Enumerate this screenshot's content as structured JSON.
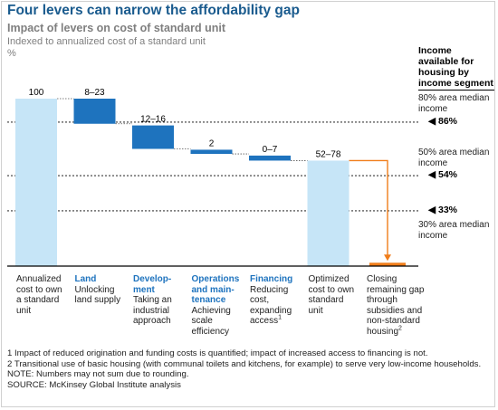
{
  "header": {
    "title": "Four levers can narrow the affordability gap",
    "subtitle": "Impact of levers on cost of standard unit",
    "unit_line1": "Indexed to annualized cost of a standard unit",
    "unit_line2": "%"
  },
  "income_panel": {
    "header": "Income available for housing by income segment",
    "segments": [
      "80% area median income",
      "50% area median income",
      "30% area median income"
    ],
    "references": [
      {
        "label": "86%",
        "value": 86
      },
      {
        "label": "54%",
        "value": 54
      },
      {
        "label": "33%",
        "value": 33
      }
    ]
  },
  "chart_data": {
    "type": "bar",
    "subtype": "waterfall",
    "ylim": [
      0,
      100
    ],
    "ylabel": "%",
    "bars": [
      {
        "kind": "total",
        "from": 0,
        "to": 100,
        "label": "100",
        "color": "#c6e5f7"
      },
      {
        "kind": "lever",
        "from": 100,
        "to": 85,
        "label": "8–23",
        "color": "#1e73be"
      },
      {
        "kind": "lever",
        "from": 84,
        "to": 70,
        "label": "12–16",
        "color": "#1e73be"
      },
      {
        "kind": "lever",
        "from": 69.5,
        "to": 67,
        "label": "2",
        "color": "#1e73be"
      },
      {
        "kind": "lever",
        "from": 66,
        "to": 63,
        "label": "0–7",
        "color": "#1e73be"
      },
      {
        "kind": "total",
        "from": 0,
        "to": 63,
        "label": "52–78",
        "color": "#c6e5f7"
      },
      {
        "kind": "gap",
        "from": 0,
        "to": 2,
        "label": "",
        "color": "#f07d1a"
      }
    ],
    "categories": [
      {
        "head": "",
        "text": "Annualized cost to own a standard unit",
        "sup": ""
      },
      {
        "head": "Land",
        "text": "Unlocking land supply",
        "sup": ""
      },
      {
        "head": "Development",
        "text": "Taking an industrial approach",
        "sup": ""
      },
      {
        "head": "Operations and maintenance",
        "text": "Achieving scale efficiency",
        "sup": ""
      },
      {
        "head": "Financing",
        "text": "Reducing cost, expanding access",
        "sup": "1"
      },
      {
        "head": "",
        "text": "Optimized cost to own standard unit",
        "sup": ""
      },
      {
        "head": "",
        "text": "Closing remaining gap through subsidies and non-standard housing",
        "sup": "2"
      }
    ],
    "category_display": [
      [
        "Annualized",
        "cost to own",
        "a standard",
        "unit"
      ],
      [
        "Land",
        "Unlocking",
        "land supply"
      ],
      [
        "Develop-",
        "ment",
        "Taking an",
        "industrial",
        "approach"
      ],
      [
        "Operations",
        "and main-",
        "tenance",
        "Achieving",
        "scale",
        "efficiency"
      ],
      [
        "Financing",
        "Reducing",
        "cost,",
        "expanding",
        "access"
      ],
      [
        "Optimized",
        "cost to own",
        "standard",
        "unit"
      ],
      [
        "Closing",
        "remaining gap",
        "through",
        "subsidies and",
        "non-standard",
        "housing"
      ]
    ],
    "category_head_lines": [
      0,
      1,
      2,
      3,
      1,
      0,
      0
    ],
    "category_sup_line": [
      -1,
      -1,
      -1,
      -1,
      4,
      -1,
      5
    ]
  },
  "footnotes": {
    "note1": "1  Impact of reduced origination and funding costs is quantified; impact of increased access to financing is not.",
    "note2": "2  Transitional use of basic housing (with communal toilets and kitchens, for example) to serve very low-income households.",
    "note3": "NOTE: Numbers may not sum due to rounding.",
    "source": "SOURCE: McKinsey Global Institute analysis"
  },
  "colors": {
    "title": "#1a5b8e",
    "lever": "#1e73be",
    "total": "#c6e5f7",
    "gap": "#f07d1a"
  }
}
